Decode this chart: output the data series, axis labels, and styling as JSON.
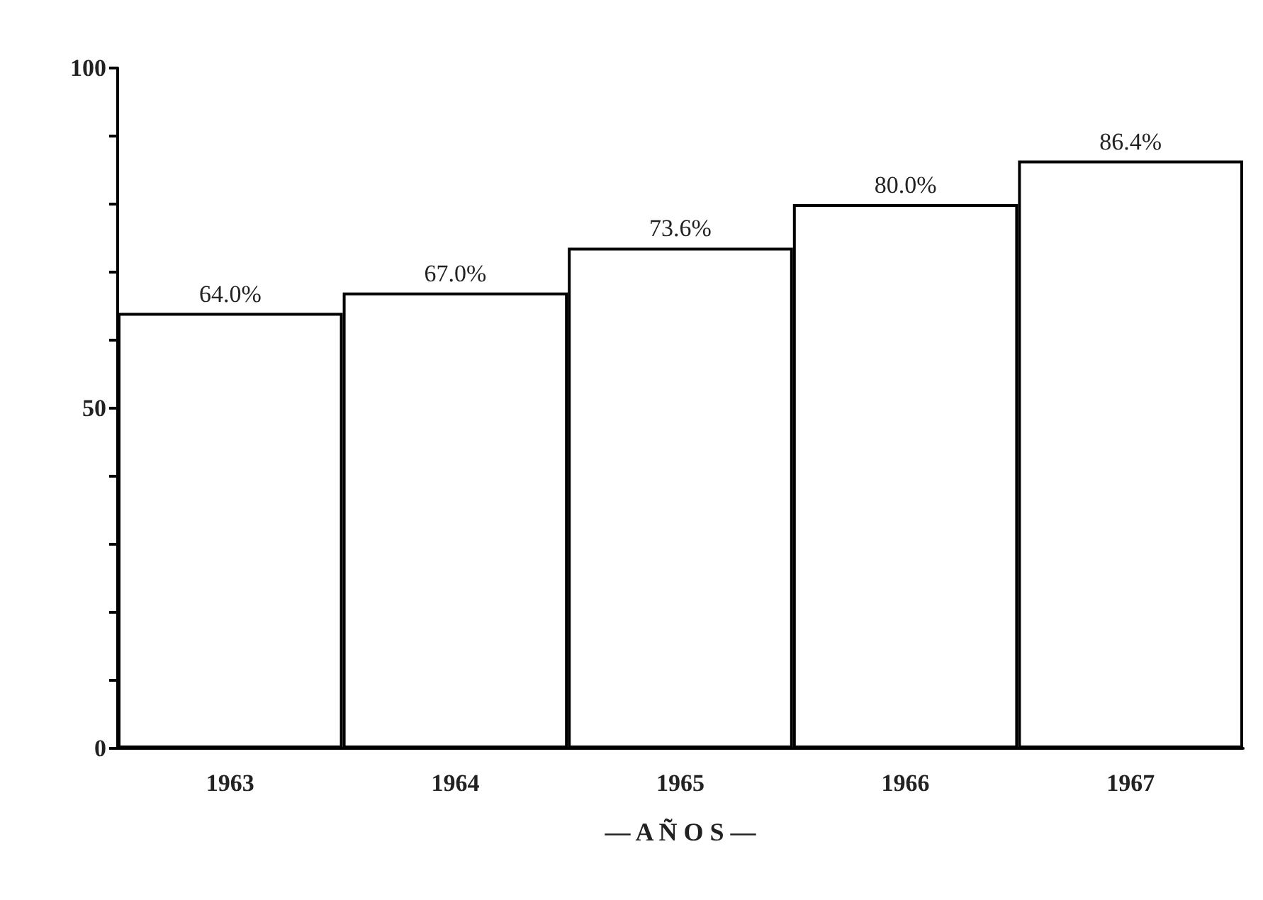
{
  "chart_data": {
    "type": "bar",
    "xlabel": "— A Ñ O S —",
    "categories": [
      "1963",
      "1964",
      "1965",
      "1966",
      "1967"
    ],
    "values": [
      64.0,
      67.0,
      73.6,
      80.0,
      86.4
    ],
    "value_labels": [
      "64.0%",
      "67.0%",
      "73.6%",
      "80.0%",
      "86.4%"
    ],
    "color": "#ffffff",
    "ylim": [
      0,
      100
    ],
    "yticks": [
      0,
      {
        "value": 10,
        "label": null
      },
      {
        "value": 20,
        "label": null
      },
      {
        "value": 30,
        "label": null
      },
      {
        "value": 40,
        "label": null
      },
      50,
      {
        "value": 60,
        "label": null
      },
      {
        "value": 70,
        "label": null
      },
      {
        "value": 80,
        "label": null
      },
      {
        "value": 90,
        "label": null
      },
      100
    ],
    "grid": false
  }
}
